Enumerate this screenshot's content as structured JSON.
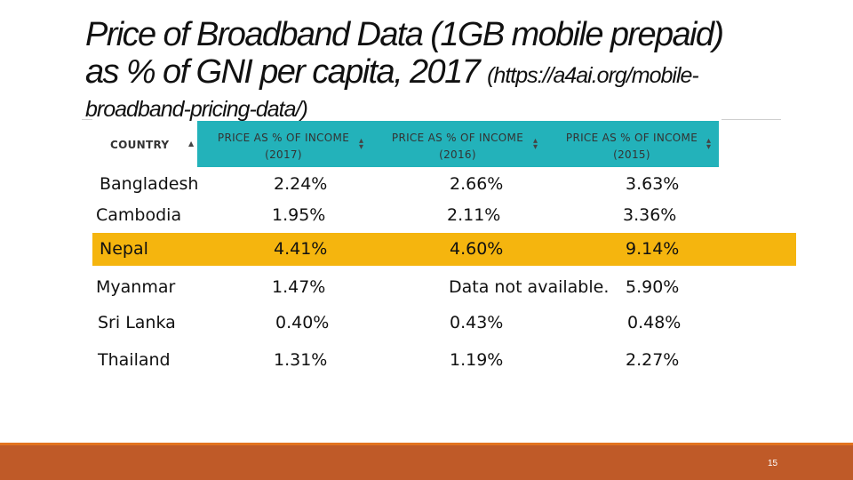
{
  "title": {
    "line1": "Price of Broadband Data (1GB mobile prepaid)",
    "line2": "as % of GNI per capita, 2017",
    "url": "(https://a4ai.org/mobile-",
    "line3": "broadband-pricing-data/)"
  },
  "table": {
    "headers": {
      "country": "COUNTRY",
      "col1_line1": "PRICE AS % OF INCOME",
      "col1_line2": "(2017)",
      "col2_line1": "PRICE AS % OF INCOME",
      "col2_line2": "(2016)",
      "col3_line1": "PRICE AS % OF INCOME",
      "col3_line2": "(2015)"
    },
    "rows": [
      {
        "country": "Bangladesh",
        "v2017": "2.24%",
        "v2016": "2.66%",
        "v2015": "3.63%"
      },
      {
        "country": "Cambodia",
        "v2017": "1.95%",
        "v2016": "2.11%",
        "v2015": "3.36%"
      },
      {
        "country": "Nepal",
        "v2017": "4.41%",
        "v2016": "4.60%",
        "v2015": "9.14%"
      },
      {
        "country": "Myanmar",
        "v2017": "1.47%",
        "v2016": "Data not available.",
        "v2015": "5.90%"
      },
      {
        "country": "Sri Lanka",
        "v2017": "0.40%",
        "v2016": "0.43%",
        "v2015": "0.48%"
      },
      {
        "country": "Thailand",
        "v2017": "1.31%",
        "v2016": "1.19%",
        "v2015": "2.27%"
      }
    ],
    "highlight_color": "#f5b50e",
    "header_color": "#23b2ba"
  },
  "footer": {
    "page_number": "15",
    "color": "#bf5a28"
  },
  "icons": {
    "sort_up": "sort-up-icon",
    "sort_both": "sort-both-icon"
  }
}
